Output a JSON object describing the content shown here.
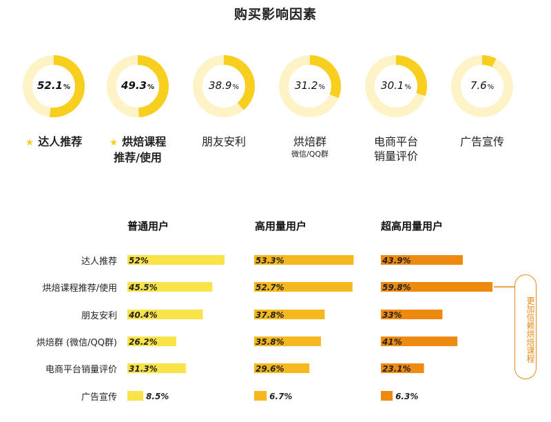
{
  "title": "购买影响因素",
  "donuts": [
    {
      "value": "52.1",
      "pct": "%",
      "fraction": 0.521,
      "label": "达人推荐",
      "star": true,
      "bold": true
    },
    {
      "value": "49.3",
      "pct": "%",
      "fraction": 0.493,
      "label": "烘焙课程",
      "label2": "推荐/使用",
      "star": true,
      "bold": true
    },
    {
      "value": "38.9",
      "pct": "%",
      "fraction": 0.389,
      "label": "朋友安利",
      "star": false,
      "bold": false
    },
    {
      "value": "31.2",
      "pct": "%",
      "fraction": 0.312,
      "label": "烘焙群",
      "sub": "微信/QQ群",
      "star": false,
      "bold": false
    },
    {
      "value": "30.1",
      "pct": "%",
      "fraction": 0.301,
      "label": "电商平台",
      "label2": "销量评价",
      "star": false,
      "bold": false
    },
    {
      "value": "7.6",
      "pct": "%",
      "fraction": 0.076,
      "label": "广告宣传",
      "star": false,
      "bold": false
    }
  ],
  "star_icon": "★",
  "colors": {
    "donut_track": "#fdf3c6",
    "donut_fill": "#f8cf1f",
    "col1": "#f9e349",
    "col2": "#f6b81f",
    "col3": "#ee8a10",
    "callout": "#e98a16"
  },
  "chart_data": {
    "type": "bar",
    "categories": [
      "达人推荐",
      "烘焙课程推荐/使用",
      "朋友安利",
      "烘焙群 (微信/QQ群)",
      "电商平台销量评价",
      "广告宣传"
    ],
    "series": [
      {
        "name": "普通用户",
        "values": [
          52,
          45.5,
          40.4,
          26.2,
          31.3,
          8.5
        ],
        "labels": [
          "52%",
          "45.5%",
          "40.4%",
          "26.2%",
          "31.3%",
          "8.5%"
        ]
      },
      {
        "name": "高用量用户",
        "values": [
          53.3,
          52.7,
          37.8,
          35.8,
          29.6,
          6.7
        ],
        "labels": [
          "53.3%",
          "52.7%",
          "37.8%",
          "35.8%",
          "29.6%",
          "6.7%"
        ]
      },
      {
        "name": "超高用量用户",
        "values": [
          43.9,
          59.8,
          33,
          41,
          23.1,
          6.3
        ],
        "labels": [
          "43.9%",
          "59.8%",
          "33%",
          "41%",
          "23.1%",
          "6.3%"
        ]
      }
    ],
    "callout": "更加信赖烘焙课程"
  }
}
